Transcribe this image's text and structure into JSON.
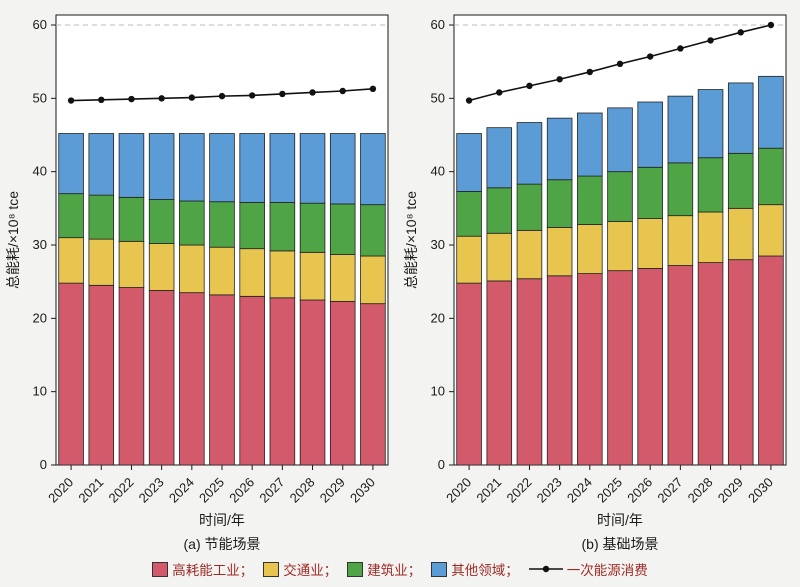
{
  "chart_data": [
    {
      "type": "bar",
      "subtype": "stacked-bar-with-line",
      "title": "(a) 节能场景",
      "xlabel": "时间/年",
      "ylabel": "总能耗/×10⁸ tce",
      "ylim": [
        0,
        60
      ],
      "yticks": [
        0,
        10,
        20,
        30,
        40,
        50,
        60
      ],
      "grid_values": [
        60
      ],
      "categories": [
        "2020",
        "2021",
        "2022",
        "2023",
        "2024",
        "2025",
        "2026",
        "2027",
        "2028",
        "2029",
        "2030"
      ],
      "series": [
        {
          "name": "高耗能工业",
          "color": "#d35a6b",
          "values": [
            24.8,
            24.5,
            24.2,
            23.8,
            23.5,
            23.2,
            23.0,
            22.8,
            22.5,
            22.3,
            22.0
          ]
        },
        {
          "name": "交通业",
          "color": "#e7c54e",
          "values": [
            6.2,
            6.3,
            6.3,
            6.4,
            6.5,
            6.5,
            6.5,
            6.4,
            6.5,
            6.4,
            6.5
          ]
        },
        {
          "name": "建筑业",
          "color": "#4fa445",
          "values": [
            6.0,
            6.0,
            6.0,
            6.0,
            6.0,
            6.2,
            6.3,
            6.6,
            6.7,
            6.9,
            7.0
          ]
        },
        {
          "name": "其他领域",
          "color": "#5b9cd6",
          "values": [
            8.2,
            8.4,
            8.7,
            9.0,
            9.2,
            9.3,
            9.4,
            9.4,
            9.5,
            9.6,
            9.7
          ]
        }
      ],
      "line": {
        "name": "一次能源消费",
        "color": "#111111",
        "values": [
          49.7,
          49.8,
          49.9,
          50.0,
          50.1,
          50.3,
          50.4,
          50.6,
          50.8,
          51.0,
          51.3
        ]
      }
    },
    {
      "type": "bar",
      "subtype": "stacked-bar-with-line",
      "title": "(b) 基础场景",
      "xlabel": "时间/年",
      "ylabel": "总能耗/×10⁸ tce",
      "ylim": [
        0,
        60
      ],
      "yticks": [
        0,
        10,
        20,
        30,
        40,
        50,
        60
      ],
      "grid_values": [
        60
      ],
      "categories": [
        "2020",
        "2021",
        "2022",
        "2023",
        "2024",
        "2025",
        "2026",
        "2027",
        "2028",
        "2029",
        "2030"
      ],
      "series": [
        {
          "name": "高耗能工业",
          "color": "#d35a6b",
          "values": [
            24.8,
            25.1,
            25.4,
            25.8,
            26.1,
            26.5,
            26.8,
            27.2,
            27.6,
            28.0,
            28.5
          ]
        },
        {
          "name": "交通业",
          "color": "#e7c54e",
          "values": [
            6.4,
            6.5,
            6.6,
            6.6,
            6.7,
            6.7,
            6.8,
            6.8,
            6.9,
            7.0,
            7.0
          ]
        },
        {
          "name": "建筑业",
          "color": "#4fa445",
          "values": [
            6.1,
            6.2,
            6.3,
            6.5,
            6.6,
            6.8,
            7.0,
            7.2,
            7.4,
            7.5,
            7.7
          ]
        },
        {
          "name": "其他领域",
          "color": "#5b9cd6",
          "values": [
            7.9,
            8.2,
            8.4,
            8.4,
            8.6,
            8.7,
            8.9,
            9.1,
            9.3,
            9.6,
            9.8
          ]
        }
      ],
      "line": {
        "name": "一次能源消费",
        "color": "#111111",
        "values": [
          49.7,
          50.8,
          51.7,
          52.6,
          53.6,
          54.7,
          55.7,
          56.8,
          57.9,
          59.0,
          60.0
        ]
      }
    }
  ],
  "legend": {
    "text_color": "#9e2b27",
    "items": [
      {
        "swatch": "#d35a6b",
        "label": "高耗能工业；"
      },
      {
        "swatch": "#e7c54e",
        "label": "交通业；"
      },
      {
        "swatch": "#4fa445",
        "label": "建筑业；"
      },
      {
        "swatch": "#5b9cd6",
        "label": "其他领域；"
      },
      {
        "marker": "line-dot",
        "label": "一次能源消费"
      }
    ]
  },
  "style": {
    "plot_bg": "#ffffff",
    "axis_color": "#1a1a1a",
    "grid_color": "#bbbbbb"
  }
}
